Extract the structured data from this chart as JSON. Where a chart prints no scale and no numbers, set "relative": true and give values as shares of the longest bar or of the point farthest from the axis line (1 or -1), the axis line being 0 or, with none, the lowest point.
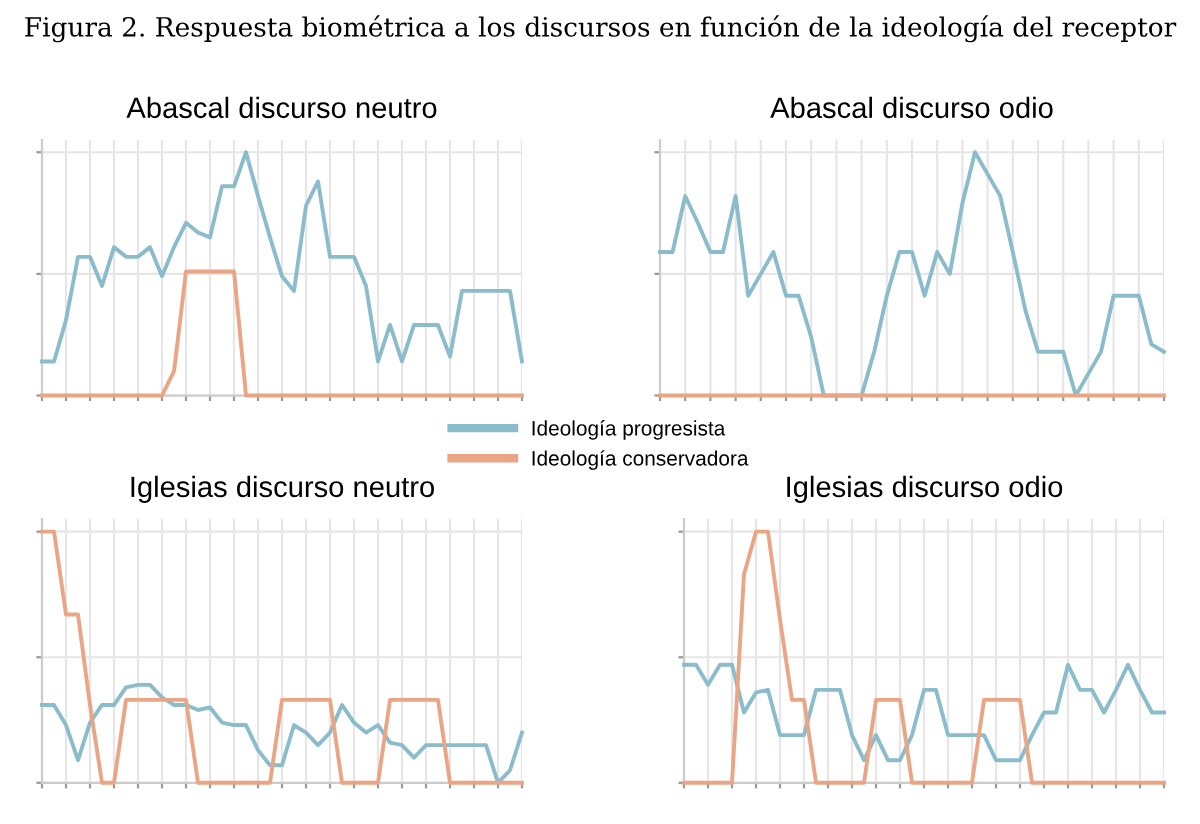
{
  "chart_data": [
    {
      "type": "line",
      "title": "Abascal discurso neutro",
      "annotations": [
        "Figura 2. Respuesta biométrica a los discursos en función de la ideología del receptor"
      ],
      "relative": true,
      "grid": true,
      "legend": "bottom",
      "tick_labels": false,
      "marker": "none",
      "line_style": "solid",
      "categories": [
        null,
        null,
        null,
        null,
        null,
        null,
        null,
        null,
        null,
        null,
        null,
        null,
        null,
        null,
        null,
        null,
        null,
        null,
        null,
        null,
        null,
        null,
        null,
        null,
        null,
        null,
        null,
        null,
        null,
        null,
        null,
        null,
        null,
        null,
        null,
        null,
        null,
        null,
        null,
        null,
        null
      ],
      "series": [
        {
          "name": "Ideología progresista",
          "color": "#8bbccc",
          "values": [
            0.14,
            0.14,
            0.31,
            0.57,
            0.57,
            0.45,
            0.61,
            0.57,
            0.57,
            0.61,
            0.49,
            0.61,
            0.71,
            0.67,
            0.65,
            0.86,
            0.86,
            1,
            0.82,
            0.65,
            0.49,
            0.43,
            0.78,
            0.88,
            0.57,
            0.57,
            0.57,
            0.45,
            0.14,
            0.29,
            0.14,
            0.29,
            0.29,
            0.29,
            0.16,
            0.43,
            0.43,
            0.43,
            0.43,
            0.43,
            0.14
          ]
        },
        {
          "name": "Ideología conservadora",
          "color": "#e9a584",
          "values": [
            0,
            0,
            0,
            0,
            0,
            0,
            0,
            0,
            0,
            0,
            0,
            0.1,
            0.51,
            0.51,
            0.51,
            0.51,
            0.51,
            0,
            0,
            0,
            0,
            0,
            0,
            0,
            0,
            0,
            0,
            0,
            0,
            0,
            0,
            0,
            0,
            0,
            0,
            0,
            0,
            0,
            0,
            0,
            0
          ]
        }
      ]
    },
    {
      "type": "line",
      "title": "Abascal discurso odio",
      "relative": true,
      "grid": true,
      "legend": "bottom",
      "tick_labels": false,
      "marker": "none",
      "line_style": "solid",
      "categories": [
        null,
        null,
        null,
        null,
        null,
        null,
        null,
        null,
        null,
        null,
        null,
        null,
        null,
        null,
        null,
        null,
        null,
        null,
        null,
        null,
        null,
        null,
        null,
        null,
        null,
        null,
        null,
        null,
        null,
        null,
        null,
        null,
        null,
        null,
        null,
        null,
        null,
        null,
        null,
        null,
        null
      ],
      "series": [
        {
          "name": "Ideología progresista",
          "color": "#8bbccc",
          "values": [
            0.59,
            0.59,
            0.82,
            0.71,
            0.59,
            0.59,
            0.82,
            0.41,
            0.5,
            0.59,
            0.41,
            0.41,
            0.24,
            0,
            0,
            0,
            0,
            0.18,
            0.41,
            0.59,
            0.59,
            0.41,
            0.59,
            0.5,
            0.79,
            1,
            0.91,
            0.82,
            0.59,
            0.35,
            0.18,
            0.18,
            0.18,
            0,
            0.09,
            0.18,
            0.41,
            0.41,
            0.41,
            0.21,
            0.18
          ]
        },
        {
          "name": "Ideología conservadora",
          "color": "#e9a584",
          "values": [
            0,
            0,
            0,
            0,
            0,
            0,
            0,
            0,
            0,
            0,
            0,
            0,
            0,
            0,
            0,
            0,
            0,
            0,
            0,
            0,
            0,
            0,
            0,
            0,
            0,
            0,
            0,
            0,
            0,
            0,
            0,
            0,
            0,
            0,
            0,
            0,
            0,
            0,
            0,
            0,
            0
          ]
        }
      ]
    },
    {
      "type": "line",
      "title": "Iglesias discurso neutro",
      "relative": true,
      "grid": true,
      "legend": "top",
      "tick_labels": false,
      "marker": "none",
      "line_style": "solid",
      "categories": [
        null,
        null,
        null,
        null,
        null,
        null,
        null,
        null,
        null,
        null,
        null,
        null,
        null,
        null,
        null,
        null,
        null,
        null,
        null,
        null,
        null,
        null,
        null,
        null,
        null,
        null,
        null,
        null,
        null,
        null,
        null,
        null,
        null,
        null,
        null,
        null,
        null,
        null,
        null,
        null,
        null
      ],
      "series": [
        {
          "name": "Ideología progresista",
          "color": "#8bbccc",
          "values": [
            0.31,
            0.31,
            0.23,
            0.09,
            0.24,
            0.31,
            0.31,
            0.38,
            0.39,
            0.39,
            0.34,
            0.31,
            0.31,
            0.29,
            0.3,
            0.24,
            0.23,
            0.23,
            0.13,
            0.07,
            0.07,
            0.23,
            0.2,
            0.15,
            0.2,
            0.31,
            0.24,
            0.2,
            0.23,
            0.16,
            0.15,
            0.1,
            0.15,
            0.15,
            0.15,
            0.15,
            0.15,
            0.15,
            0,
            0.05,
            0.2
          ]
        },
        {
          "name": "Ideología conservadora",
          "color": "#e9a584",
          "values": [
            1,
            1,
            0.67,
            0.67,
            0.31,
            0,
            0,
            0.33,
            0.33,
            0.33,
            0.33,
            0.33,
            0.33,
            0,
            0,
            0,
            0,
            0,
            0,
            0,
            0.33,
            0.33,
            0.33,
            0.33,
            0.33,
            0,
            0,
            0,
            0,
            0.33,
            0.33,
            0.33,
            0.33,
            0.33,
            0,
            0,
            0,
            0,
            0,
            0,
            0
          ]
        }
      ]
    },
    {
      "type": "line",
      "title": "Iglesias discurso odio",
      "relative": true,
      "grid": true,
      "legend": "top",
      "tick_labels": false,
      "marker": "none",
      "line_style": "solid",
      "categories": [
        null,
        null,
        null,
        null,
        null,
        null,
        null,
        null,
        null,
        null,
        null,
        null,
        null,
        null,
        null,
        null,
        null,
        null,
        null,
        null,
        null,
        null,
        null,
        null,
        null,
        null,
        null,
        null,
        null,
        null,
        null,
        null,
        null,
        null,
        null,
        null,
        null,
        null,
        null,
        null,
        null
      ],
      "series": [
        {
          "name": "Ideología progresista",
          "color": "#8bbccc",
          "values": [
            0.47,
            0.47,
            0.39,
            0.47,
            0.47,
            0.28,
            0.36,
            0.37,
            0.19,
            0.19,
            0.19,
            0.37,
            0.37,
            0.37,
            0.19,
            0.09,
            0.19,
            0.09,
            0.09,
            0.19,
            0.37,
            0.37,
            0.19,
            0.19,
            0.19,
            0.19,
            0.09,
            0.09,
            0.09,
            0.19,
            0.28,
            0.28,
            0.47,
            0.37,
            0.37,
            0.28,
            0.37,
            0.47,
            0.37,
            0.28,
            0.28
          ]
        },
        {
          "name": "Ideología conservadora",
          "color": "#e9a584",
          "values": [
            0,
            0,
            0,
            0,
            0,
            0.83,
            1,
            1,
            0.65,
            0.33,
            0.33,
            0,
            0,
            0,
            0,
            0,
            0.33,
            0.33,
            0.33,
            0,
            0,
            0,
            0,
            0,
            0,
            0.33,
            0.33,
            0.33,
            0.33,
            0,
            0,
            0,
            0,
            0,
            0,
            0,
            0,
            0,
            0,
            0,
            0
          ]
        }
      ]
    }
  ]
}
